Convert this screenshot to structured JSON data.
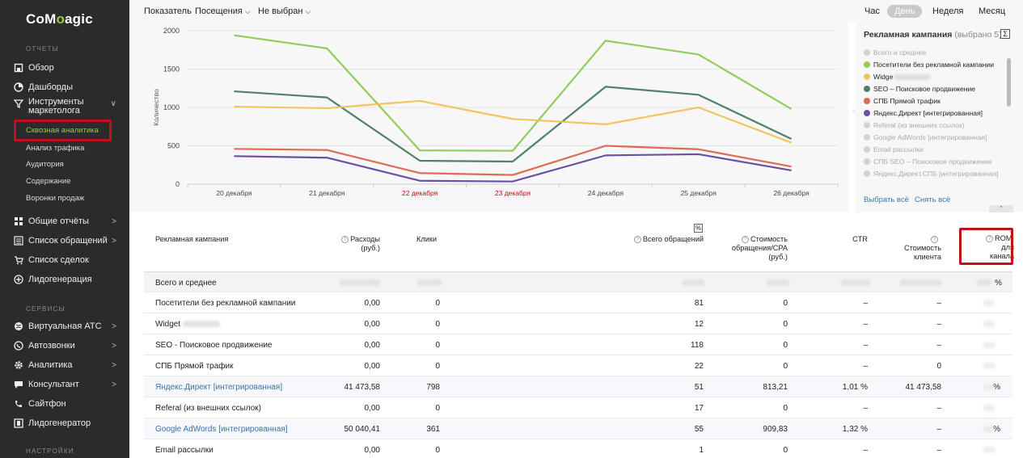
{
  "brand": {
    "logo_a": "Co",
    "logo_o": "M",
    "logo_b": "agic"
  },
  "sidebar": {
    "section_reports": "ОТЧЕТЫ",
    "section_services": "СЕРВИСЫ",
    "section_settings": "НАСТРОЙКИ",
    "items": [
      {
        "label": "Обзор",
        "icon": "home-icon"
      },
      {
        "label": "Дашборды",
        "icon": "pie-icon"
      },
      {
        "label": "Инструменты маркетолога",
        "icon": "filter-icon"
      },
      {
        "label": "Общие отчёты",
        "icon": "grid-icon"
      },
      {
        "label": "Список обращений",
        "icon": "list-icon"
      },
      {
        "label": "Список сделок",
        "icon": "cart-icon"
      },
      {
        "label": "Лидогенерация",
        "icon": "lead-icon"
      }
    ],
    "subitems": [
      "Сквозная аналитика",
      "Анализ трафика",
      "Аудитория",
      "Содержание",
      "Воронки продаж"
    ],
    "services": [
      {
        "label": "Виртуальная АТС",
        "icon": "globe-icon"
      },
      {
        "label": "Автозвонки",
        "icon": "phone-icon"
      },
      {
        "label": "Аналитика",
        "icon": "gear-icon"
      },
      {
        "label": "Консультант",
        "icon": "chat-icon"
      },
      {
        "label": "Сайтфон",
        "icon": "sitephone-icon"
      },
      {
        "label": "Лидогенератор",
        "icon": "leadgen-icon"
      }
    ]
  },
  "topbar": {
    "indicator_label": "Показатель",
    "indicator_value": "Посещения",
    "secondary_value": "Не выбран",
    "periods": [
      "Час",
      "День",
      "Неделя",
      "Месяц"
    ],
    "active_period": "День"
  },
  "chart_data": {
    "type": "line",
    "ylabel": "Количество",
    "ylim": [
      0,
      2000
    ],
    "yticks": [
      "2000",
      "1500",
      "1000",
      "500",
      "0"
    ],
    "categories": [
      "20 декабря",
      "21 декабря",
      "22 декабря",
      "23 декабря",
      "24 декабря",
      "25 декабря",
      "26 декабря"
    ],
    "weekend_color": "#d0021b",
    "weekend_index": [
      2,
      3
    ],
    "series": [
      {
        "name": "Посетители без рекламной кампании",
        "color": "#92cc5a",
        "values": [
          1940,
          1770,
          440,
          435,
          1870,
          1690,
          980
        ]
      },
      {
        "name": "SEO – Поисковое продвижение",
        "color": "#4e8166",
        "values": [
          1210,
          1130,
          305,
          295,
          1270,
          1165,
          590
        ]
      },
      {
        "name": "Widget",
        "color": "#f2c55c",
        "values": [
          1010,
          990,
          1085,
          850,
          780,
          1000,
          540
        ]
      },
      {
        "name": "СПБ Прямой трафик",
        "color": "#df6b57",
        "values": [
          460,
          445,
          145,
          120,
          500,
          455,
          230
        ]
      },
      {
        "name": "Яндекс.Директ [интегрированная]",
        "color": "#6b4fa6",
        "values": [
          365,
          345,
          45,
          35,
          375,
          390,
          180
        ]
      }
    ]
  },
  "legend": {
    "title": "Рекламная кампания",
    "subtitle": "(выбрано 5)",
    "sigma": "Σ",
    "items": [
      {
        "label": "Всего и среднее",
        "color": "#d3d3d3",
        "active": false
      },
      {
        "label": "Посетители без рекламной кампании",
        "color": "#92cc5a",
        "active": true
      },
      {
        "label": "Widge",
        "color": "#f2c55c",
        "active": true
      },
      {
        "label": "SEO – Поисковое продвижение",
        "color": "#4e8166",
        "active": true
      },
      {
        "label": "СПБ Прямой трафик",
        "color": "#df6b57",
        "active": true
      },
      {
        "label": "Яндекс.Директ [интегрированная]",
        "color": "#6b4fa6",
        "active": true
      },
      {
        "label": "Referal (из внешних ссылок)",
        "color": "#d3d3d3",
        "active": false
      },
      {
        "label": "Google AdWords [интегрированная]",
        "color": "#d3d3d3",
        "active": false
      },
      {
        "label": "Email рассылки",
        "color": "#d3d3d3",
        "active": false
      },
      {
        "label": "СПБ SEO – Поисковое продвижение",
        "color": "#d3d3d3",
        "active": false
      },
      {
        "label": "Яндекс.Директ.СПБ [интегрированная]",
        "color": "#d3d3d3",
        "active": false
      }
    ],
    "select_all": "Выбрать всё",
    "deselect_all": "Снять всё",
    "collapse": "⌃"
  },
  "table": {
    "headers": {
      "campaign": "Рекламная кампания",
      "costs_1": "Расходы",
      "costs_2": "(руб.)",
      "clicks": "Клики",
      "pct": "%",
      "total_requests": "Всего обращений",
      "cpa_1": "Стоимость",
      "cpa_2": "обращения/CPA",
      "cpa_3": "(руб.)",
      "ctr": "CTR",
      "client_cost_1": "Стоимость",
      "client_cost_2": "клиента",
      "romi_1": "ROMI",
      "romi_2": "для",
      "romi_3": "канала"
    },
    "total_row": {
      "label": "Всего и среднее",
      "romi": "%"
    },
    "rows": [
      {
        "name": "Посетители без рекламной кампании",
        "link": false,
        "costs": "0,00",
        "clicks": "0",
        "requests": "81",
        "cpa": "0",
        "ctr": "–",
        "client_cost": "–",
        "romi": ""
      },
      {
        "name": "Widget",
        "link": false,
        "costs": "0,00",
        "clicks": "0",
        "requests": "12",
        "cpa": "0",
        "ctr": "–",
        "client_cost": "–",
        "romi": ""
      },
      {
        "name": "SEO - Поисковое продвижение",
        "link": false,
        "costs": "0,00",
        "clicks": "0",
        "requests": "118",
        "cpa": "0",
        "ctr": "–",
        "client_cost": "–",
        "romi": ""
      },
      {
        "name": "СПБ Прямой трафик",
        "link": false,
        "costs": "0,00",
        "clicks": "0",
        "requests": "22",
        "cpa": "0",
        "ctr": "–",
        "client_cost": "0",
        "romi": ""
      },
      {
        "name": "Яндекс.Директ [интегрированная]",
        "link": true,
        "costs": "41 473,58",
        "clicks": "798",
        "requests": "51",
        "cpa": "813,21",
        "ctr": "1,01 %",
        "client_cost": "41 473,58",
        "romi": "%"
      },
      {
        "name": "Referal (из внешних ссылок)",
        "link": false,
        "costs": "0,00",
        "clicks": "0",
        "requests": "17",
        "cpa": "0",
        "ctr": "–",
        "client_cost": "–",
        "romi": ""
      },
      {
        "name": "Google AdWords [интегрированная]",
        "link": true,
        "costs": "50 040,41",
        "clicks": "361",
        "requests": "55",
        "cpa": "909,83",
        "ctr": "1,32 %",
        "client_cost": "–",
        "romi": "%"
      },
      {
        "name": "Email рассылки",
        "link": false,
        "costs": "0,00",
        "clicks": "0",
        "requests": "1",
        "cpa": "0",
        "ctr": "–",
        "client_cost": "–",
        "romi": ""
      }
    ]
  }
}
